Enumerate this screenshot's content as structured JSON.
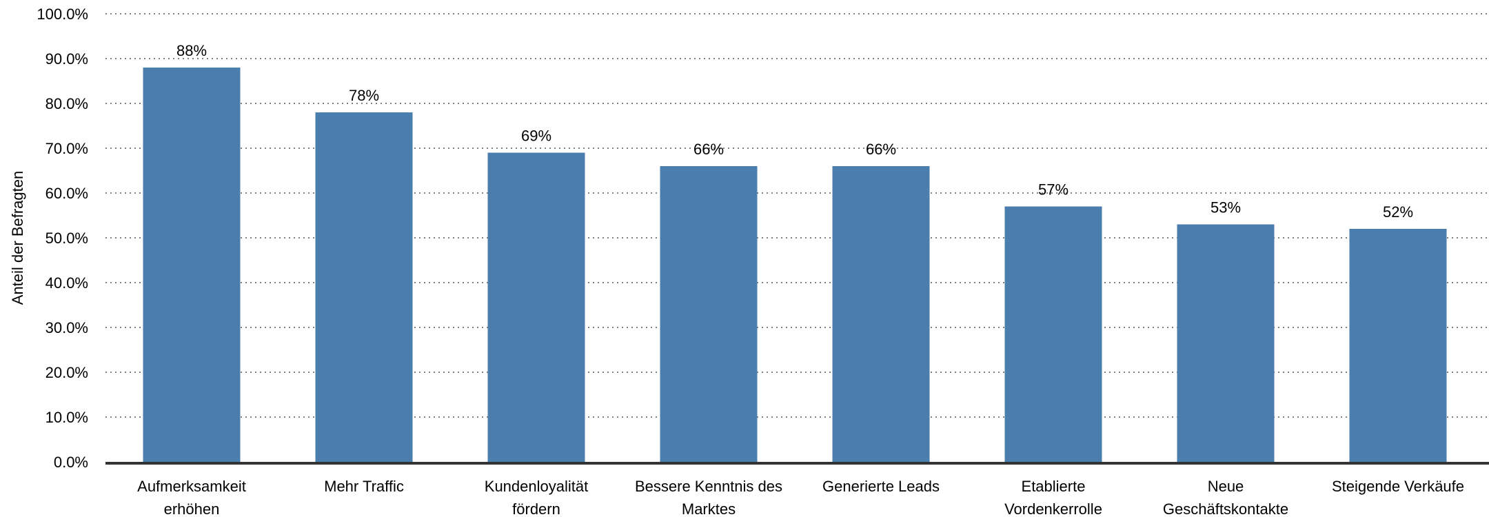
{
  "chart_data": {
    "type": "bar",
    "categories": [
      [
        "Aufmerksamkeit",
        "erhöhen"
      ],
      [
        "Mehr Traffic"
      ],
      [
        "Kundenloyalität",
        "fördern"
      ],
      [
        "Bessere Kenntnis des",
        "Marktes"
      ],
      [
        "Generierte Leads"
      ],
      [
        "Etablierte",
        "Vordenkerrolle"
      ],
      [
        "Neue",
        "Geschäftskontakte"
      ],
      [
        "Steigende Verkäufe"
      ]
    ],
    "values": [
      88,
      78,
      69,
      66,
      66,
      57,
      53,
      52
    ],
    "data_labels": [
      "88%",
      "78%",
      "69%",
      "66%",
      "66%",
      "57%",
      "53%",
      "52%"
    ],
    "ylabel": "Anteil der Befragten",
    "ylim": [
      0,
      100
    ],
    "yticks": [
      0,
      10,
      20,
      30,
      40,
      50,
      60,
      70,
      80,
      90,
      100
    ],
    "ytick_labels": [
      "0.0%",
      "10.0%",
      "20.0%",
      "30.0%",
      "40.0%",
      "50.0%",
      "60.0%",
      "70.0%",
      "80.0%",
      "90.0%",
      "100.0%"
    ],
    "grid": "dotted horizontal",
    "bar_color": "#4a7eae",
    "axis_color": "#333333",
    "grid_color": "#555555"
  }
}
